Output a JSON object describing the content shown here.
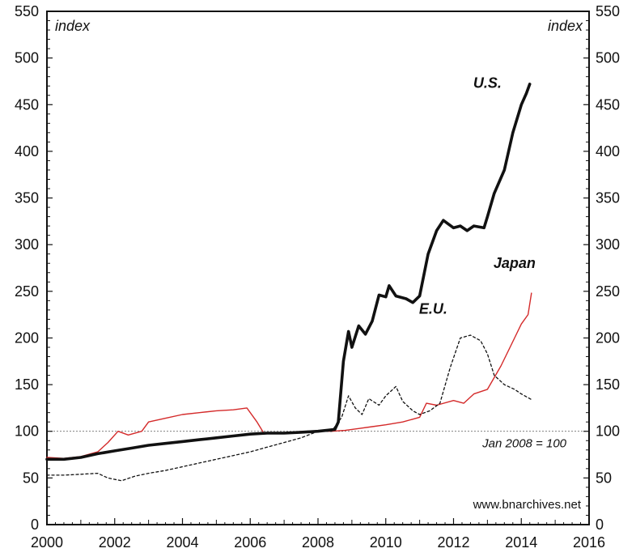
{
  "chart_data": {
    "type": "line",
    "title": "",
    "xlabel": "",
    "ylabel_left": "index",
    "ylabel_right": "index",
    "xlim": [
      2000,
      2016
    ],
    "ylim": [
      0,
      550
    ],
    "x_ticks": [
      2000,
      2002,
      2004,
      2006,
      2008,
      2010,
      2012,
      2014,
      2016
    ],
    "y_ticks": [
      0,
      50,
      100,
      150,
      200,
      250,
      300,
      350,
      400,
      450,
      500,
      550
    ],
    "grid": false,
    "reference_line": {
      "y": 100,
      "label": "Jan 2008 = 100"
    },
    "source": "www.bnarchives.net",
    "series": [
      {
        "name": "U.S.",
        "color": "#111111",
        "style": "solid-thick",
        "label_at": [
          2013.0,
          468
        ],
        "points": [
          [
            2000.0,
            70
          ],
          [
            2000.5,
            70
          ],
          [
            2001.0,
            72
          ],
          [
            2001.5,
            76
          ],
          [
            2002.0,
            79
          ],
          [
            2002.5,
            82
          ],
          [
            2003.0,
            85
          ],
          [
            2003.5,
            87
          ],
          [
            2004.0,
            89
          ],
          [
            2004.5,
            91
          ],
          [
            2005.0,
            93
          ],
          [
            2005.5,
            95
          ],
          [
            2006.0,
            97
          ],
          [
            2006.5,
            98
          ],
          [
            2007.0,
            98
          ],
          [
            2007.5,
            99
          ],
          [
            2008.0,
            100
          ],
          [
            2008.5,
            102
          ],
          [
            2008.6,
            110
          ],
          [
            2008.75,
            175
          ],
          [
            2008.9,
            207
          ],
          [
            2009.0,
            190
          ],
          [
            2009.2,
            213
          ],
          [
            2009.4,
            204
          ],
          [
            2009.6,
            218
          ],
          [
            2009.8,
            246
          ],
          [
            2010.0,
            244
          ],
          [
            2010.1,
            256
          ],
          [
            2010.3,
            245
          ],
          [
            2010.6,
            242
          ],
          [
            2010.8,
            238
          ],
          [
            2011.0,
            245
          ],
          [
            2011.25,
            290
          ],
          [
            2011.5,
            315
          ],
          [
            2011.7,
            326
          ],
          [
            2012.0,
            318
          ],
          [
            2012.2,
            320
          ],
          [
            2012.4,
            315
          ],
          [
            2012.6,
            320
          ],
          [
            2012.9,
            318
          ],
          [
            2013.0,
            330
          ],
          [
            2013.2,
            355
          ],
          [
            2013.5,
            380
          ],
          [
            2013.75,
            420
          ],
          [
            2014.0,
            450
          ],
          [
            2014.15,
            462
          ],
          [
            2014.25,
            472
          ]
        ]
      },
      {
        "name": "Japan",
        "color": "#d42a2a",
        "style": "solid-thin",
        "label_at": [
          2013.8,
          275
        ],
        "points": [
          [
            2000.0,
            72
          ],
          [
            2000.5,
            71
          ],
          [
            2001.0,
            73
          ],
          [
            2001.5,
            78
          ],
          [
            2001.8,
            88
          ],
          [
            2002.1,
            100
          ],
          [
            2002.4,
            96
          ],
          [
            2002.8,
            100
          ],
          [
            2003.0,
            110
          ],
          [
            2003.5,
            114
          ],
          [
            2004.0,
            118
          ],
          [
            2004.5,
            120
          ],
          [
            2005.0,
            122
          ],
          [
            2005.5,
            123
          ],
          [
            2005.9,
            125
          ],
          [
            2006.2,
            110
          ],
          [
            2006.4,
            98
          ],
          [
            2006.8,
            98
          ],
          [
            2007.2,
            99
          ],
          [
            2007.6,
            100
          ],
          [
            2008.0,
            100
          ],
          [
            2008.4,
            100
          ],
          [
            2008.8,
            101
          ],
          [
            2009.2,
            103
          ],
          [
            2009.6,
            105
          ],
          [
            2010.0,
            107
          ],
          [
            2010.5,
            110
          ],
          [
            2011.0,
            115
          ],
          [
            2011.2,
            130
          ],
          [
            2011.5,
            128
          ],
          [
            2012.0,
            133
          ],
          [
            2012.3,
            130
          ],
          [
            2012.6,
            140
          ],
          [
            2013.0,
            145
          ],
          [
            2013.4,
            170
          ],
          [
            2013.8,
            200
          ],
          [
            2014.0,
            215
          ],
          [
            2014.2,
            225
          ],
          [
            2014.3,
            248
          ]
        ]
      },
      {
        "name": "E.U.",
        "color": "#111111",
        "style": "dotted",
        "label_at": [
          2011.4,
          226
        ],
        "points": [
          [
            2000.0,
            53
          ],
          [
            2000.5,
            53
          ],
          [
            2001.0,
            54
          ],
          [
            2001.5,
            55
          ],
          [
            2001.8,
            50
          ],
          [
            2002.2,
            47
          ],
          [
            2002.6,
            52
          ],
          [
            2003.0,
            55
          ],
          [
            2003.5,
            58
          ],
          [
            2004.0,
            62
          ],
          [
            2004.5,
            66
          ],
          [
            2005.0,
            70
          ],
          [
            2005.5,
            74
          ],
          [
            2006.0,
            78
          ],
          [
            2006.5,
            83
          ],
          [
            2007.0,
            88
          ],
          [
            2007.5,
            93
          ],
          [
            2008.0,
            100
          ],
          [
            2008.4,
            100
          ],
          [
            2008.7,
            115
          ],
          [
            2008.9,
            138
          ],
          [
            2009.1,
            125
          ],
          [
            2009.3,
            118
          ],
          [
            2009.5,
            135
          ],
          [
            2009.8,
            128
          ],
          [
            2010.0,
            138
          ],
          [
            2010.3,
            148
          ],
          [
            2010.5,
            132
          ],
          [
            2010.8,
            122
          ],
          [
            2011.0,
            118
          ],
          [
            2011.3,
            122
          ],
          [
            2011.6,
            130
          ],
          [
            2011.9,
            168
          ],
          [
            2012.2,
            200
          ],
          [
            2012.5,
            203
          ],
          [
            2012.8,
            197
          ],
          [
            2013.0,
            183
          ],
          [
            2013.2,
            160
          ],
          [
            2013.5,
            150
          ],
          [
            2013.8,
            145
          ],
          [
            2014.0,
            140
          ],
          [
            2014.3,
            134
          ]
        ]
      }
    ]
  }
}
